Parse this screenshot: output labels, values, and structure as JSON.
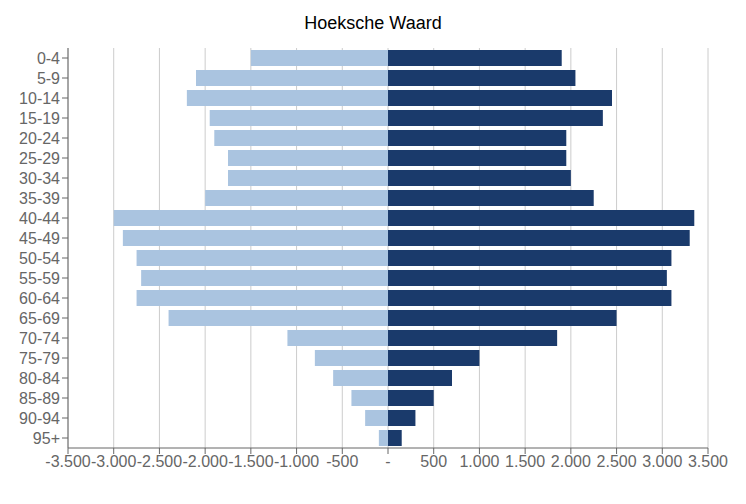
{
  "chart_data": {
    "type": "bar",
    "orientation": "horizontal",
    "title": "Hoeksche Waard",
    "categories": [
      "0-4",
      "5-9",
      "10-14",
      "15-19",
      "20-24",
      "25-29",
      "30-34",
      "35-39",
      "40-44",
      "45-49",
      "50-54",
      "55-59",
      "60-64",
      "65-69",
      "70-74",
      "75-79",
      "80-84",
      "85-89",
      "90-94",
      "95+"
    ],
    "series": [
      {
        "color": "#aac4e0",
        "values": [
          -1500,
          -2100,
          -2200,
          -1950,
          -1900,
          -1750,
          -1750,
          -2000,
          -3000,
          -2900,
          -2750,
          -2700,
          -2750,
          -2400,
          -1100,
          -800,
          -600,
          -400,
          -250,
          -100
        ]
      },
      {
        "color": "#1a3a6b",
        "values": [
          1900,
          2050,
          2450,
          2350,
          1950,
          1950,
          2000,
          2250,
          3350,
          3300,
          3100,
          3050,
          3100,
          2500,
          1850,
          1000,
          700,
          500,
          300,
          150
        ]
      }
    ],
    "xlim": [
      -3500,
      3500
    ],
    "xticks": [
      {
        "value": -3500,
        "label": "-3.500"
      },
      {
        "value": -3000,
        "label": "-3.000"
      },
      {
        "value": -2500,
        "label": "-2.500"
      },
      {
        "value": -2000,
        "label": "-2.000"
      },
      {
        "value": -1500,
        "label": "-1.500"
      },
      {
        "value": -1000,
        "label": "-1.000"
      },
      -500,
      {
        "value": 0,
        "label": "-"
      },
      500,
      {
        "value": 1000,
        "label": "1.000"
      },
      {
        "value": 1500,
        "label": "1.500"
      },
      {
        "value": 2000,
        "label": "2.000"
      },
      {
        "value": 2500,
        "label": "2.500"
      },
      {
        "value": 3000,
        "label": "3.000"
      },
      {
        "value": 3500,
        "label": "3.500"
      }
    ],
    "grid": true
  }
}
